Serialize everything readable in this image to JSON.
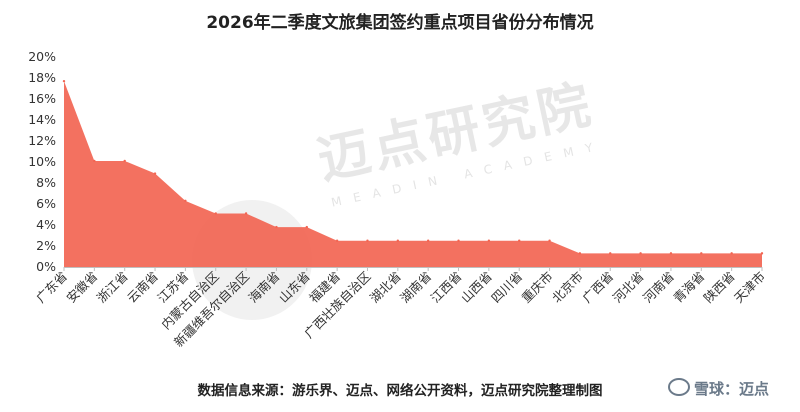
{
  "chart_data": {
    "type": "area",
    "title": "2026年二季度文旅集团签约重点项目省份分布情况",
    "categories": [
      "广东省",
      "安徽省",
      "浙江省",
      "云南省",
      "江苏省",
      "内蒙古自治区",
      "新疆维吾尔自治区",
      "海南省",
      "山东省",
      "福建省",
      "广西壮族自治区",
      "湖北省",
      "湖南省",
      "江西省",
      "山西省",
      "四川省",
      "重庆市",
      "北京市",
      "广西省",
      "河北省",
      "河南省",
      "青海省",
      "陕西省",
      "天津市"
    ],
    "values": [
      17.7,
      10.1,
      10.1,
      8.9,
      6.3,
      5.1,
      5.1,
      3.8,
      3.8,
      2.5,
      2.5,
      2.5,
      2.5,
      2.5,
      2.5,
      2.5,
      2.5,
      1.3,
      1.3,
      1.3,
      1.3,
      1.3,
      1.3,
      1.3
    ],
    "y_ticks": [
      "0%",
      "2%",
      "4%",
      "6%",
      "8%",
      "10%",
      "12%",
      "14%",
      "16%",
      "18%",
      "20%"
    ],
    "ylim": [
      0,
      20
    ],
    "grid": false,
    "color": "#f26552"
  },
  "source_note": "数据信息来源：游乐界、迈点、网络公开资料，迈点研究院整理制图",
  "watermark": {
    "text": "迈点研究院",
    "subtext": "MEADIN ACADEMY"
  },
  "platform_mark": {
    "name": "雪球：迈点"
  }
}
